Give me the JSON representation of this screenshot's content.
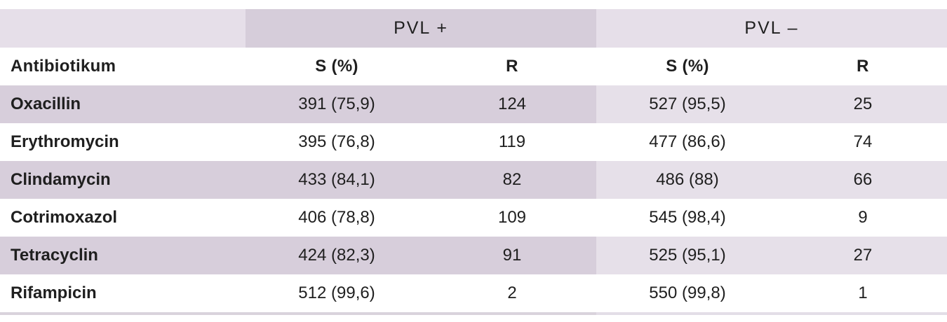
{
  "table": {
    "group_headers": {
      "pvl_positive": "PVL +",
      "pvl_negative": "PVL –"
    },
    "columns": [
      "Antibiotikum",
      "S (%)",
      "R",
      "S (%)",
      "R"
    ],
    "rows": [
      {
        "name": "Oxacillin",
        "s_pos": "391 (75,9)",
        "r_pos": "124",
        "s_neg": "527 (95,5)",
        "r_neg": "25"
      },
      {
        "name": "Erythromycin",
        "s_pos": "395 (76,8)",
        "r_pos": "119",
        "s_neg": "477 (86,6)",
        "r_neg": "74"
      },
      {
        "name": "Clindamycin",
        "s_pos": "433 (84,1)",
        "r_pos": "82",
        "s_neg": "486 (88)",
        "r_neg": "66"
      },
      {
        "name": "Cotrimoxazol",
        "s_pos": "406 (78,8)",
        "r_pos": "109",
        "s_neg": "545 (98,4)",
        "r_neg": "9"
      },
      {
        "name": "Tetracyclin",
        "s_pos": "424 (82,3)",
        "r_pos": "91",
        "s_neg": "525 (95,1)",
        "r_neg": "27"
      },
      {
        "name": "Rifampicin",
        "s_pos": "512 (99,6)",
        "r_pos": "2",
        "s_neg": "550 (99,8)",
        "r_neg": "1"
      }
    ],
    "colors": {
      "stripe_dark": "#d7cedb",
      "stripe_light": "#e6e0e9",
      "header_group_dark": "#d6cdda",
      "header_group_light": "#e6dfe9",
      "text": "#1f1f1f"
    }
  }
}
